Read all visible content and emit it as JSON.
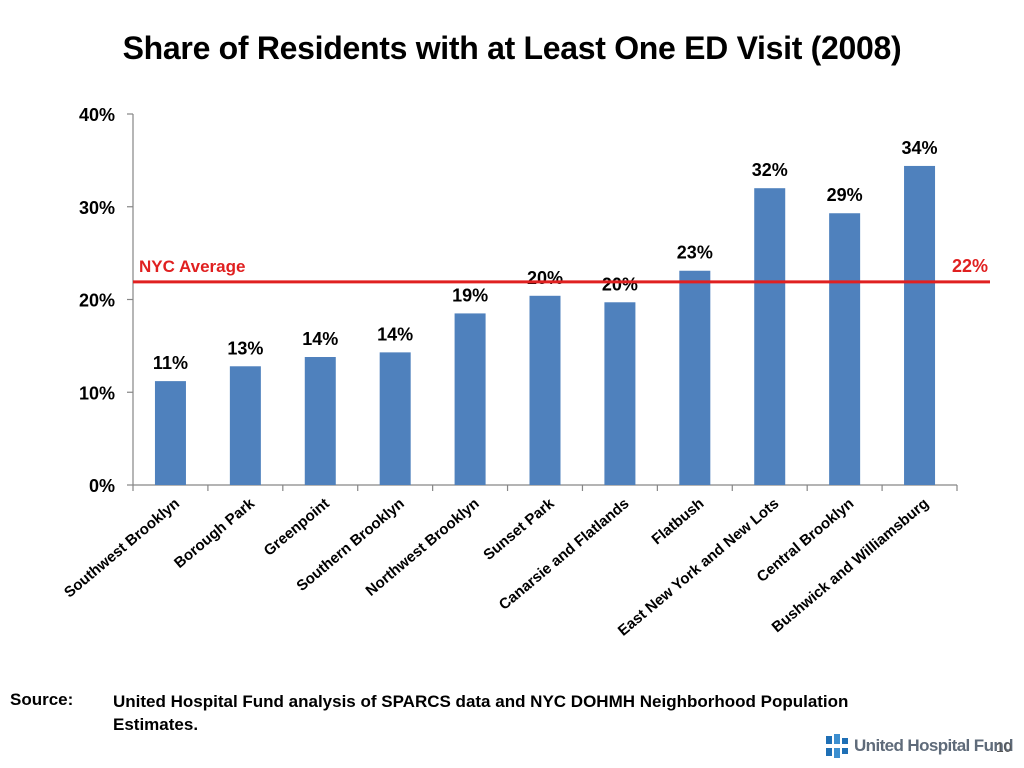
{
  "title": "Share of Residents with at Least One ED Visit (2008)",
  "chart_data": {
    "type": "bar",
    "title": "Share of Residents with at Least One ED Visit (2008)",
    "xlabel": "",
    "ylabel": "",
    "ylim": [
      0,
      40
    ],
    "yticks": [
      0,
      10,
      20,
      30,
      40
    ],
    "ytick_labels": [
      "0%",
      "10%",
      "20%",
      "30%",
      "40%"
    ],
    "categories": [
      "Southwest Brooklyn",
      "Borough Park",
      "Greenpoint",
      "Southern Brooklyn",
      "Northwest Brooklyn",
      "Sunset Park",
      "Canarsie and Flatlands",
      "Flatbush",
      "East New York and New Lots",
      "Central Brooklyn",
      "Bushwick and Williamsburg"
    ],
    "values": [
      11.2,
      12.8,
      13.8,
      14.3,
      18.5,
      20.4,
      19.7,
      23.1,
      32.0,
      29.3,
      34.4
    ],
    "data_labels": [
      "11%",
      "13%",
      "14%",
      "14%",
      "19%",
      "20%",
      "20%",
      "23%",
      "32%",
      "29%",
      "34%"
    ],
    "bar_color": "#4f81bd",
    "reference_line": {
      "label": "NYC Average",
      "value": 21.9,
      "value_label": "22%",
      "color": "#e02020"
    },
    "grid": false
  },
  "footer": {
    "source_label": "Source:",
    "source_text": "United Hospital Fund analysis of SPARCS data and NYC DOHMH Neighborhood Population Estimates.",
    "logo_text": "United Hospital Fund",
    "page_number": "10"
  }
}
